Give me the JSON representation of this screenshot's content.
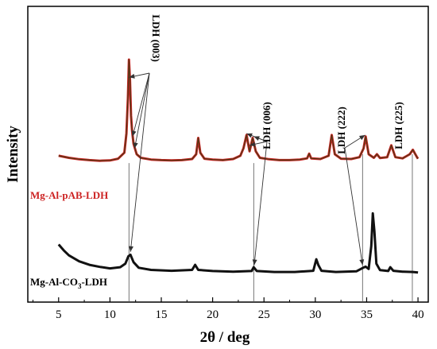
{
  "chart_data": {
    "type": "line",
    "xlabel": "2θ / deg",
    "ylabel": "Intensity",
    "xlim": [
      2,
      41
    ],
    "ylim": [
      0,
      100
    ],
    "x_ticks": [
      5,
      10,
      15,
      20,
      25,
      30,
      35,
      40
    ],
    "y_ticks_shown": false,
    "grid": false,
    "series": [
      {
        "name": "Mg-Al-pAB-LDH",
        "name_prefix": "Mg-Al-pAB-LDH",
        "name_subscript": "",
        "name_suffix": "",
        "color": "#cc2222",
        "overlay_color": "#4a3a14",
        "points": [
          [
            5.0,
            49.5
          ],
          [
            6.0,
            48.8
          ],
          [
            7.0,
            48.3
          ],
          [
            8.0,
            48.0
          ],
          [
            9.0,
            47.8
          ],
          [
            10.0,
            47.9
          ],
          [
            10.8,
            48.5
          ],
          [
            11.4,
            50.5
          ],
          [
            11.6,
            57.0
          ],
          [
            11.75,
            69.0
          ],
          [
            11.85,
            82.0
          ],
          [
            11.95,
            75.0
          ],
          [
            12.05,
            63.0
          ],
          [
            12.15,
            58.0
          ],
          [
            12.3,
            53.5
          ],
          [
            12.6,
            50.0
          ],
          [
            13.0,
            48.8
          ],
          [
            14.0,
            48.2
          ],
          [
            15.0,
            48.0
          ],
          [
            16.0,
            47.9
          ],
          [
            17.0,
            48.0
          ],
          [
            18.0,
            48.4
          ],
          [
            18.4,
            50.0
          ],
          [
            18.6,
            55.5
          ],
          [
            18.8,
            50.5
          ],
          [
            19.2,
            48.5
          ],
          [
            20.0,
            48.2
          ],
          [
            21.0,
            48.0
          ],
          [
            22.0,
            48.4
          ],
          [
            22.7,
            49.5
          ],
          [
            23.0,
            52.0
          ],
          [
            23.3,
            56.5
          ],
          [
            23.6,
            51.0
          ],
          [
            23.9,
            55.5
          ],
          [
            24.2,
            51.0
          ],
          [
            24.6,
            48.8
          ],
          [
            25.5,
            48.3
          ],
          [
            26.5,
            48.0
          ],
          [
            27.5,
            48.0
          ],
          [
            28.5,
            48.2
          ],
          [
            29.2,
            48.6
          ],
          [
            29.4,
            50.2
          ],
          [
            29.6,
            48.6
          ],
          [
            30.5,
            48.4
          ],
          [
            31.3,
            49.5
          ],
          [
            31.6,
            56.5
          ],
          [
            31.9,
            50.0
          ],
          [
            32.5,
            48.5
          ],
          [
            33.5,
            48.4
          ],
          [
            34.3,
            49.0
          ],
          [
            34.7,
            52.0
          ],
          [
            34.9,
            56.0
          ],
          [
            35.2,
            50.0
          ],
          [
            35.7,
            48.8
          ],
          [
            36.0,
            50.0
          ],
          [
            36.3,
            48.7
          ],
          [
            37.0,
            49.0
          ],
          [
            37.4,
            53.0
          ],
          [
            37.8,
            49.0
          ],
          [
            38.5,
            48.6
          ],
          [
            39.2,
            50.0
          ],
          [
            39.5,
            51.5
          ],
          [
            39.9,
            49.0
          ],
          [
            40.0,
            48.5
          ]
        ]
      },
      {
        "name": "Mg-Al-CO3-LDH",
        "name_prefix": "Mg-Al-CO",
        "name_subscript": "3",
        "name_suffix": "-LDH",
        "color": "#111111",
        "points": [
          [
            5.0,
            19.5
          ],
          [
            5.5,
            17.5
          ],
          [
            6.0,
            15.8
          ],
          [
            7.0,
            13.8
          ],
          [
            8.0,
            12.6
          ],
          [
            9.0,
            11.9
          ],
          [
            10.0,
            11.4
          ],
          [
            11.0,
            11.8
          ],
          [
            11.5,
            13.0
          ],
          [
            11.8,
            15.5
          ],
          [
            12.0,
            16.0
          ],
          [
            12.3,
            13.5
          ],
          [
            12.8,
            11.6
          ],
          [
            14.0,
            10.9
          ],
          [
            16.0,
            10.6
          ],
          [
            18.0,
            10.9
          ],
          [
            18.3,
            12.6
          ],
          [
            18.6,
            10.9
          ],
          [
            20.0,
            10.5
          ],
          [
            22.0,
            10.3
          ],
          [
            23.8,
            10.5
          ],
          [
            24.0,
            11.8
          ],
          [
            24.3,
            10.5
          ],
          [
            26.0,
            10.2
          ],
          [
            28.0,
            10.2
          ],
          [
            29.8,
            10.6
          ],
          [
            30.1,
            14.5
          ],
          [
            30.3,
            12.5
          ],
          [
            30.6,
            10.6
          ],
          [
            32.0,
            10.2
          ],
          [
            34.0,
            10.4
          ],
          [
            34.6,
            11.5
          ],
          [
            34.9,
            12.0
          ],
          [
            35.2,
            11.2
          ],
          [
            35.45,
            19.0
          ],
          [
            35.6,
            30.0
          ],
          [
            35.75,
            24.0
          ],
          [
            35.95,
            13.0
          ],
          [
            36.3,
            10.8
          ],
          [
            37.1,
            10.5
          ],
          [
            37.3,
            11.8
          ],
          [
            37.6,
            10.6
          ],
          [
            38.5,
            10.3
          ],
          [
            39.5,
            10.2
          ],
          [
            40.0,
            10.0
          ]
        ]
      }
    ],
    "annotations": [
      {
        "id": "ldh-003",
        "text": "LDH (003)",
        "vertical": true
      },
      {
        "id": "ldh-006",
        "text": "LDH (006)",
        "vertical": false
      },
      {
        "id": "ldh-222",
        "text": "LDH (222)",
        "vertical": false
      },
      {
        "id": "ldh-225",
        "text": "LDH (225)",
        "vertical": false
      }
    ]
  }
}
